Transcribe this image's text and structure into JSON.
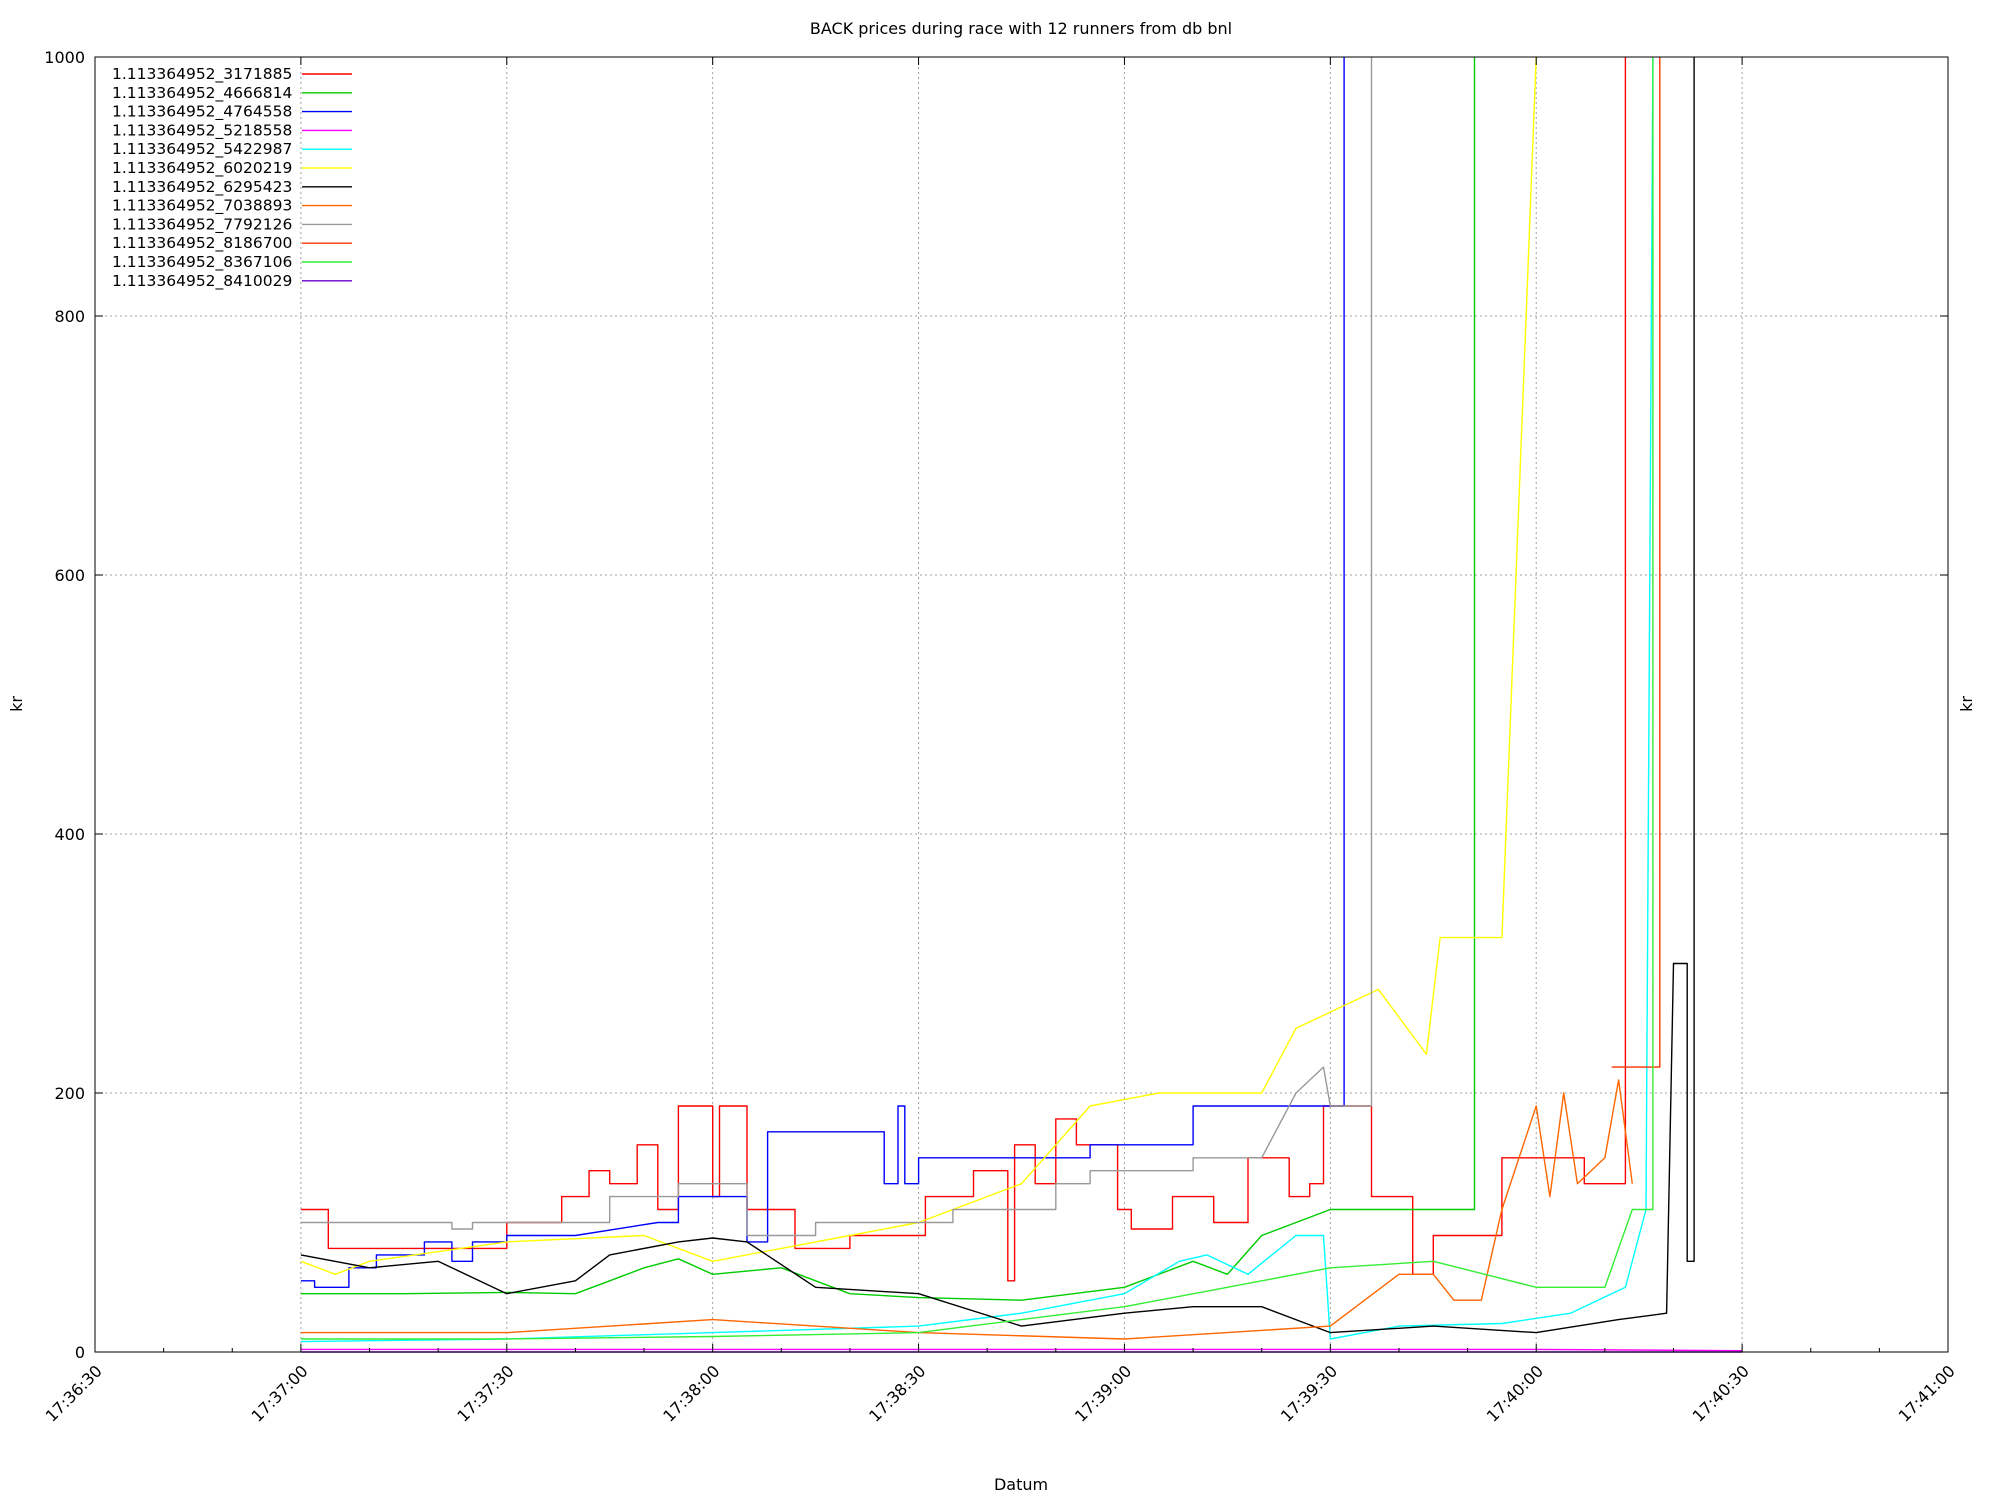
{
  "chart_data": {
    "type": "line",
    "title": "BACK prices during race with 12 runners from db bnl",
    "xlabel": "Datum",
    "ylabel": "kr",
    "y2label": "kr",
    "xlim": [
      "17:36:30",
      "17:41:00"
    ],
    "ylim": [
      0,
      1000
    ],
    "grid": true,
    "legend_position": "top-left",
    "x_ticks": [
      "17:36:30",
      "17:37:00",
      "17:37:30",
      "17:38:00",
      "17:38:30",
      "17:39:00",
      "17:39:30",
      "17:40:00",
      "17:40:30",
      "17:41:00"
    ],
    "y_ticks": [
      0,
      200,
      400,
      600,
      800,
      1000
    ],
    "series": [
      {
        "name": "1.113364952_3171885",
        "color": "#ff0000",
        "points": [
          [
            "17:37:00",
            110
          ],
          [
            "17:37:04",
            110
          ],
          [
            "17:37:04",
            80
          ],
          [
            "17:37:12",
            80
          ],
          [
            "17:37:30",
            80
          ],
          [
            "17:37:30",
            100
          ],
          [
            "17:37:38",
            100
          ],
          [
            "17:37:38",
            120
          ],
          [
            "17:37:42",
            120
          ],
          [
            "17:37:42",
            140
          ],
          [
            "17:37:45",
            140
          ],
          [
            "17:37:45",
            130
          ],
          [
            "17:37:49",
            130
          ],
          [
            "17:37:49",
            160
          ],
          [
            "17:37:52",
            160
          ],
          [
            "17:37:52",
            110
          ],
          [
            "17:37:55",
            110
          ],
          [
            "17:37:55",
            190
          ],
          [
            "17:38:00",
            190
          ],
          [
            "17:38:00",
            120
          ],
          [
            "17:38:01",
            120
          ],
          [
            "17:38:01",
            190
          ],
          [
            "17:38:05",
            190
          ],
          [
            "17:38:05",
            110
          ],
          [
            "17:38:12",
            110
          ],
          [
            "17:38:12",
            80
          ],
          [
            "17:38:20",
            80
          ],
          [
            "17:38:20",
            90
          ],
          [
            "17:38:31",
            90
          ],
          [
            "17:38:31",
            120
          ],
          [
            "17:38:38",
            120
          ],
          [
            "17:38:38",
            140
          ],
          [
            "17:38:43",
            140
          ],
          [
            "17:38:43",
            55
          ],
          [
            "17:38:44",
            55
          ],
          [
            "17:38:44",
            160
          ],
          [
            "17:38:47",
            160
          ],
          [
            "17:38:47",
            130
          ],
          [
            "17:38:50",
            130
          ],
          [
            "17:38:50",
            180
          ],
          [
            "17:38:53",
            180
          ],
          [
            "17:38:53",
            160
          ],
          [
            "17:38:59",
            160
          ],
          [
            "17:38:59",
            110
          ],
          [
            "17:39:01",
            110
          ],
          [
            "17:39:01",
            95
          ],
          [
            "17:39:07",
            95
          ],
          [
            "17:39:07",
            120
          ],
          [
            "17:39:13",
            120
          ],
          [
            "17:39:13",
            100
          ],
          [
            "17:39:18",
            100
          ],
          [
            "17:39:18",
            150
          ],
          [
            "17:39:24",
            150
          ],
          [
            "17:39:24",
            120
          ],
          [
            "17:39:27",
            120
          ],
          [
            "17:39:27",
            130
          ],
          [
            "17:39:29",
            130
          ],
          [
            "17:39:29",
            190
          ],
          [
            "17:39:36",
            190
          ],
          [
            "17:39:36",
            120
          ],
          [
            "17:39:42",
            120
          ],
          [
            "17:39:42",
            60
          ],
          [
            "17:39:45",
            60
          ],
          [
            "17:39:45",
            90
          ],
          [
            "17:39:55",
            90
          ],
          [
            "17:39:55",
            150
          ],
          [
            "17:40:07",
            150
          ],
          [
            "17:40:07",
            130
          ],
          [
            "17:40:13",
            130
          ],
          [
            "17:40:13",
            1000
          ]
        ]
      },
      {
        "name": "1.113364952_4666814",
        "color": "#00cc00",
        "points": [
          [
            "17:37:00",
            45
          ],
          [
            "17:37:15",
            45
          ],
          [
            "17:37:30",
            46
          ],
          [
            "17:37:40",
            45
          ],
          [
            "17:37:45",
            55
          ],
          [
            "17:37:50",
            65
          ],
          [
            "17:37:55",
            72
          ],
          [
            "17:38:00",
            60
          ],
          [
            "17:38:10",
            65
          ],
          [
            "17:38:15",
            55
          ],
          [
            "17:38:20",
            45
          ],
          [
            "17:38:30",
            42
          ],
          [
            "17:38:45",
            40
          ],
          [
            "17:39:00",
            50
          ],
          [
            "17:39:10",
            70
          ],
          [
            "17:39:15",
            60
          ],
          [
            "17:39:20",
            90
          ],
          [
            "17:39:30",
            110
          ],
          [
            "17:39:40",
            110
          ],
          [
            "17:39:45",
            110
          ],
          [
            "17:39:51",
            110
          ],
          [
            "17:39:51",
            1000
          ]
        ]
      },
      {
        "name": "1.113364952_4764558",
        "color": "#0000ff",
        "points": [
          [
            "17:37:00",
            55
          ],
          [
            "17:37:02",
            55
          ],
          [
            "17:37:02",
            50
          ],
          [
            "17:37:07",
            50
          ],
          [
            "17:37:07",
            65
          ],
          [
            "17:37:11",
            65
          ],
          [
            "17:37:11",
            75
          ],
          [
            "17:37:18",
            75
          ],
          [
            "17:37:18",
            85
          ],
          [
            "17:37:22",
            85
          ],
          [
            "17:37:22",
            70
          ],
          [
            "17:37:25",
            70
          ],
          [
            "17:37:25",
            85
          ],
          [
            "17:37:30",
            85
          ],
          [
            "17:37:30",
            90
          ],
          [
            "17:37:40",
            90
          ],
          [
            "17:37:52",
            100
          ],
          [
            "17:37:55",
            100
          ],
          [
            "17:37:55",
            120
          ],
          [
            "17:38:05",
            120
          ],
          [
            "17:38:05",
            85
          ],
          [
            "17:38:08",
            85
          ],
          [
            "17:38:08",
            170
          ],
          [
            "17:38:25",
            170
          ],
          [
            "17:38:25",
            130
          ],
          [
            "17:38:27",
            130
          ],
          [
            "17:38:27",
            190
          ],
          [
            "17:38:28",
            190
          ],
          [
            "17:38:28",
            130
          ],
          [
            "17:38:30",
            130
          ],
          [
            "17:38:30",
            150
          ],
          [
            "17:38:55",
            150
          ],
          [
            "17:38:55",
            160
          ],
          [
            "17:39:10",
            160
          ],
          [
            "17:39:10",
            190
          ],
          [
            "17:39:20",
            190
          ],
          [
            "17:39:25",
            190
          ],
          [
            "17:39:32",
            190
          ],
          [
            "17:39:32",
            1000
          ]
        ]
      },
      {
        "name": "1.113364952_5218558",
        "color": "#ff00ff",
        "points": [
          [
            "17:37:00",
            2
          ],
          [
            "17:38:00",
            2
          ],
          [
            "17:39:00",
            2
          ],
          [
            "17:40:00",
            2
          ],
          [
            "17:40:30",
            1
          ]
        ]
      },
      {
        "name": "1.113364952_5422987",
        "color": "#00ffff",
        "points": [
          [
            "17:37:00",
            8
          ],
          [
            "17:37:30",
            10
          ],
          [
            "17:38:00",
            15
          ],
          [
            "17:38:30",
            20
          ],
          [
            "17:38:45",
            30
          ],
          [
            "17:39:00",
            45
          ],
          [
            "17:39:08",
            70
          ],
          [
            "17:39:12",
            75
          ],
          [
            "17:39:18",
            60
          ],
          [
            "17:39:25",
            90
          ],
          [
            "17:39:29",
            90
          ],
          [
            "17:39:30",
            10
          ],
          [
            "17:39:40",
            20
          ],
          [
            "17:39:55",
            22
          ],
          [
            "17:40:05",
            30
          ],
          [
            "17:40:13",
            50
          ],
          [
            "17:40:16",
            110
          ],
          [
            "17:40:17",
            1000
          ]
        ]
      },
      {
        "name": "1.113364952_6020219",
        "color": "#ffff00",
        "points": [
          [
            "17:37:00",
            70
          ],
          [
            "17:37:05",
            60
          ],
          [
            "17:37:10",
            70
          ],
          [
            "17:37:30",
            85
          ],
          [
            "17:37:50",
            90
          ],
          [
            "17:38:00",
            70
          ],
          [
            "17:38:10",
            80
          ],
          [
            "17:38:20",
            90
          ],
          [
            "17:38:30",
            100
          ],
          [
            "17:38:45",
            130
          ],
          [
            "17:38:55",
            190
          ],
          [
            "17:39:05",
            200
          ],
          [
            "17:39:12",
            200
          ],
          [
            "17:39:20",
            200
          ],
          [
            "17:39:25",
            250
          ],
          [
            "17:39:37",
            280
          ],
          [
            "17:39:44",
            230
          ],
          [
            "17:39:46",
            320
          ],
          [
            "17:39:55",
            320
          ],
          [
            "17:40:00",
            1000
          ]
        ]
      },
      {
        "name": "1.113364952_6295423",
        "color": "#000000",
        "points": [
          [
            "17:37:00",
            75
          ],
          [
            "17:37:10",
            65
          ],
          [
            "17:37:20",
            70
          ],
          [
            "17:37:30",
            45
          ],
          [
            "17:37:40",
            55
          ],
          [
            "17:37:45",
            75
          ],
          [
            "17:37:55",
            85
          ],
          [
            "17:38:00",
            88
          ],
          [
            "17:38:05",
            85
          ],
          [
            "17:38:15",
            50
          ],
          [
            "17:38:30",
            45
          ],
          [
            "17:38:45",
            20
          ],
          [
            "17:39:00",
            30
          ],
          [
            "17:39:10",
            35
          ],
          [
            "17:39:20",
            35
          ],
          [
            "17:39:30",
            15
          ],
          [
            "17:39:45",
            20
          ],
          [
            "17:40:00",
            15
          ],
          [
            "17:40:12",
            25
          ],
          [
            "17:40:19",
            30
          ],
          [
            "17:40:20",
            300
          ],
          [
            "17:40:22",
            300
          ],
          [
            "17:40:22",
            70
          ],
          [
            "17:40:23",
            70
          ],
          [
            "17:40:23",
            1000
          ]
        ]
      },
      {
        "name": "1.113364952_7038893",
        "color": "#ff6600",
        "points": [
          [
            "17:37:00",
            15
          ],
          [
            "17:37:30",
            15
          ],
          [
            "17:38:00",
            25
          ],
          [
            "17:38:30",
            15
          ],
          [
            "17:39:00",
            10
          ],
          [
            "17:39:30",
            20
          ],
          [
            "17:39:40",
            60
          ],
          [
            "17:39:45",
            60
          ],
          [
            "17:39:48",
            40
          ],
          [
            "17:39:52",
            40
          ],
          [
            "17:39:55",
            110
          ],
          [
            "17:40:00",
            190
          ],
          [
            "17:40:02",
            120
          ],
          [
            "17:40:04",
            200
          ],
          [
            "17:40:06",
            130
          ],
          [
            "17:40:10",
            150
          ],
          [
            "17:40:12",
            210
          ],
          [
            "17:40:14",
            130
          ]
        ]
      },
      {
        "name": "1.113364952_7792126",
        "color": "#999999",
        "points": [
          [
            "17:37:00",
            100
          ],
          [
            "17:37:22",
            100
          ],
          [
            "17:37:22",
            95
          ],
          [
            "17:37:25",
            95
          ],
          [
            "17:37:25",
            100
          ],
          [
            "17:37:45",
            100
          ],
          [
            "17:37:45",
            120
          ],
          [
            "17:37:55",
            120
          ],
          [
            "17:37:55",
            130
          ],
          [
            "17:38:05",
            130
          ],
          [
            "17:38:05",
            90
          ],
          [
            "17:38:15",
            90
          ],
          [
            "17:38:15",
            100
          ],
          [
            "17:38:35",
            100
          ],
          [
            "17:38:35",
            110
          ],
          [
            "17:38:50",
            110
          ],
          [
            "17:38:50",
            130
          ],
          [
            "17:38:55",
            130
          ],
          [
            "17:38:55",
            140
          ],
          [
            "17:39:10",
            140
          ],
          [
            "17:39:10",
            150
          ],
          [
            "17:39:20",
            150
          ],
          [
            "17:39:25",
            200
          ],
          [
            "17:39:29",
            220
          ],
          [
            "17:39:30",
            190
          ],
          [
            "17:39:36",
            190
          ],
          [
            "17:39:36",
            1000
          ]
        ]
      },
      {
        "name": "1.113364952_8186700",
        "color": "#ff3300",
        "points": [
          [
            "17:40:11",
            220
          ],
          [
            "17:40:18",
            220
          ],
          [
            "17:40:18",
            1000
          ]
        ]
      },
      {
        "name": "1.113364952_8367106",
        "color": "#33ee33",
        "points": [
          [
            "17:37:00",
            10
          ],
          [
            "17:37:30",
            10
          ],
          [
            "17:38:00",
            12
          ],
          [
            "17:38:30",
            15
          ],
          [
            "17:38:45",
            25
          ],
          [
            "17:39:00",
            35
          ],
          [
            "17:39:15",
            50
          ],
          [
            "17:39:30",
            65
          ],
          [
            "17:39:45",
            70
          ],
          [
            "17:40:00",
            50
          ],
          [
            "17:40:10",
            50
          ],
          [
            "17:40:14",
            110
          ],
          [
            "17:40:17",
            110
          ],
          [
            "17:40:17",
            1000
          ]
        ]
      },
      {
        "name": "1.113364952_8410029",
        "color": "#6600cc",
        "points": [
          [
            "17:37:00",
            0
          ],
          [
            "17:38:00",
            0
          ],
          [
            "17:39:00",
            0
          ],
          [
            "17:40:00",
            0
          ],
          [
            "17:40:30",
            0
          ]
        ]
      }
    ]
  }
}
